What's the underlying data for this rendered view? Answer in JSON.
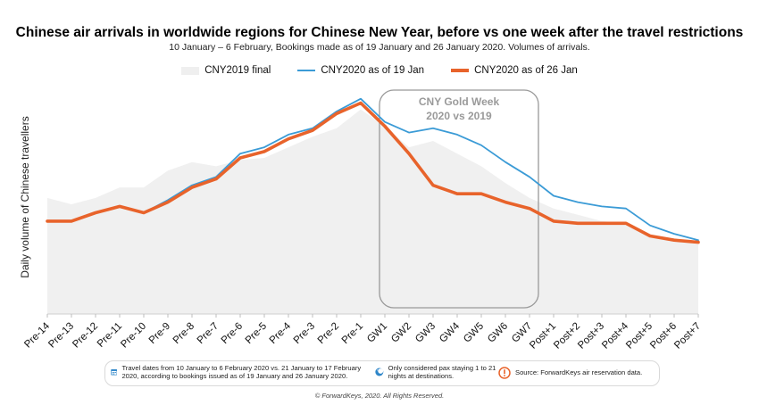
{
  "chart_data": {
    "type": "line",
    "title": "Chinese air arrivals in worldwide regions for Chinese New Year, before vs one week after the travel restrictions",
    "subtitle": "10 January – 6 February, Bookings made as of 19 January and 26 January 2020. Volumes of arrivals.",
    "ylabel": "Daily volume of Chinese travellers",
    "xlabel": "",
    "ylim": [
      0,
      100
    ],
    "grid": false,
    "legend_position": "top",
    "categories": [
      "Pre-14",
      "Pre-13",
      "Pre-12",
      "Pre-11",
      "Pre-10",
      "Pre-9",
      "Pre-8",
      "Pre-7",
      "Pre-6",
      "Pre-5",
      "Pre-4",
      "Pre-3",
      "Pre-2",
      "Pre-1",
      "GW1",
      "GW2",
      "GW3",
      "GW4",
      "GW5",
      "GW6",
      "GW7",
      "Post+1",
      "Post+2",
      "Post+3",
      "Post+4",
      "Post+5",
      "Post+6",
      "Post+7"
    ],
    "series": [
      {
        "name": "CNY2019 final",
        "type": "area",
        "color": "#f0f0f0",
        "values": [
          55,
          52,
          55,
          60,
          60,
          68,
          72,
          70,
          73,
          74,
          79,
          84,
          88,
          97,
          89,
          79,
          82,
          76,
          70,
          62,
          55,
          50,
          47,
          44,
          43,
          37,
          35,
          33
        ]
      },
      {
        "name": "CNY2020 as of 19 Jan",
        "type": "line",
        "color": "#3b9bd6",
        "values": [
          44,
          44,
          48,
          51,
          48,
          54,
          61,
          65,
          76,
          79,
          85,
          88,
          96,
          102,
          91,
          86,
          88,
          85,
          80,
          72,
          65,
          56,
          53,
          51,
          50,
          42,
          38,
          35
        ]
      },
      {
        "name": "CNY2020 as of 26 Jan",
        "type": "line",
        "color": "#e8632b",
        "values": [
          44,
          44,
          48,
          51,
          48,
          53,
          60,
          64,
          74,
          77,
          83,
          87,
          95,
          100,
          89,
          76,
          61,
          57,
          57,
          53,
          50,
          44,
          43,
          43,
          43,
          37,
          35,
          34
        ]
      }
    ],
    "annotation": {
      "line1": "CNY Gold Week",
      "line2": "2020 vs 2019",
      "from": "GW1",
      "to": "GW7"
    }
  },
  "footer": {
    "note1": "Travel dates from 10 January to 6 February 2020 vs. 21 January to 17 February 2020, according to bookings issued as of 19 January and 26 January 2020.",
    "note2": "Only considered pax staying 1 to 21 nights at destinations.",
    "note3": "Source: ForwardKeys air reservation data.",
    "icon1": "calendar-icon",
    "icon2": "moon-night-icon",
    "icon3": "exclamation-icon",
    "copyright": "© ForwardKeys, 2020. All Rights Reserved."
  }
}
